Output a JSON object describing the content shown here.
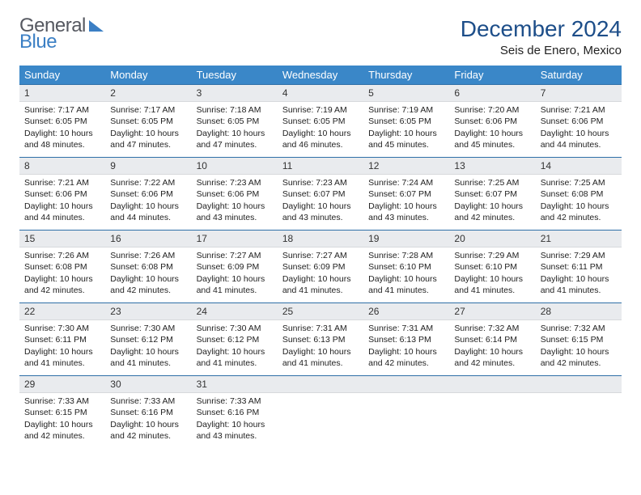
{
  "logo": {
    "text1": "General",
    "text2": "Blue"
  },
  "header": {
    "month_title": "December 2024",
    "location": "Seis de Enero, Mexico"
  },
  "colors": {
    "header_bar": "#3a87c8",
    "header_text": "#ffffff",
    "daynum_bg": "#e9ebee",
    "rule": "#2e6fa7",
    "title_color": "#1d4e89",
    "logo_blue": "#3b7fc4",
    "logo_gray": "#555860"
  },
  "weekdays": [
    "Sunday",
    "Monday",
    "Tuesday",
    "Wednesday",
    "Thursday",
    "Friday",
    "Saturday"
  ],
  "days": [
    {
      "n": "1",
      "sunrise": "7:17 AM",
      "sunset": "6:05 PM",
      "daylight": "10 hours and 48 minutes."
    },
    {
      "n": "2",
      "sunrise": "7:17 AM",
      "sunset": "6:05 PM",
      "daylight": "10 hours and 47 minutes."
    },
    {
      "n": "3",
      "sunrise": "7:18 AM",
      "sunset": "6:05 PM",
      "daylight": "10 hours and 47 minutes."
    },
    {
      "n": "4",
      "sunrise": "7:19 AM",
      "sunset": "6:05 PM",
      "daylight": "10 hours and 46 minutes."
    },
    {
      "n": "5",
      "sunrise": "7:19 AM",
      "sunset": "6:05 PM",
      "daylight": "10 hours and 45 minutes."
    },
    {
      "n": "6",
      "sunrise": "7:20 AM",
      "sunset": "6:06 PM",
      "daylight": "10 hours and 45 minutes."
    },
    {
      "n": "7",
      "sunrise": "7:21 AM",
      "sunset": "6:06 PM",
      "daylight": "10 hours and 44 minutes."
    },
    {
      "n": "8",
      "sunrise": "7:21 AM",
      "sunset": "6:06 PM",
      "daylight": "10 hours and 44 minutes."
    },
    {
      "n": "9",
      "sunrise": "7:22 AM",
      "sunset": "6:06 PM",
      "daylight": "10 hours and 44 minutes."
    },
    {
      "n": "10",
      "sunrise": "7:23 AM",
      "sunset": "6:06 PM",
      "daylight": "10 hours and 43 minutes."
    },
    {
      "n": "11",
      "sunrise": "7:23 AM",
      "sunset": "6:07 PM",
      "daylight": "10 hours and 43 minutes."
    },
    {
      "n": "12",
      "sunrise": "7:24 AM",
      "sunset": "6:07 PM",
      "daylight": "10 hours and 43 minutes."
    },
    {
      "n": "13",
      "sunrise": "7:25 AM",
      "sunset": "6:07 PM",
      "daylight": "10 hours and 42 minutes."
    },
    {
      "n": "14",
      "sunrise": "7:25 AM",
      "sunset": "6:08 PM",
      "daylight": "10 hours and 42 minutes."
    },
    {
      "n": "15",
      "sunrise": "7:26 AM",
      "sunset": "6:08 PM",
      "daylight": "10 hours and 42 minutes."
    },
    {
      "n": "16",
      "sunrise": "7:26 AM",
      "sunset": "6:08 PM",
      "daylight": "10 hours and 42 minutes."
    },
    {
      "n": "17",
      "sunrise": "7:27 AM",
      "sunset": "6:09 PM",
      "daylight": "10 hours and 41 minutes."
    },
    {
      "n": "18",
      "sunrise": "7:27 AM",
      "sunset": "6:09 PM",
      "daylight": "10 hours and 41 minutes."
    },
    {
      "n": "19",
      "sunrise": "7:28 AM",
      "sunset": "6:10 PM",
      "daylight": "10 hours and 41 minutes."
    },
    {
      "n": "20",
      "sunrise": "7:29 AM",
      "sunset": "6:10 PM",
      "daylight": "10 hours and 41 minutes."
    },
    {
      "n": "21",
      "sunrise": "7:29 AM",
      "sunset": "6:11 PM",
      "daylight": "10 hours and 41 minutes."
    },
    {
      "n": "22",
      "sunrise": "7:30 AM",
      "sunset": "6:11 PM",
      "daylight": "10 hours and 41 minutes."
    },
    {
      "n": "23",
      "sunrise": "7:30 AM",
      "sunset": "6:12 PM",
      "daylight": "10 hours and 41 minutes."
    },
    {
      "n": "24",
      "sunrise": "7:30 AM",
      "sunset": "6:12 PM",
      "daylight": "10 hours and 41 minutes."
    },
    {
      "n": "25",
      "sunrise": "7:31 AM",
      "sunset": "6:13 PM",
      "daylight": "10 hours and 41 minutes."
    },
    {
      "n": "26",
      "sunrise": "7:31 AM",
      "sunset": "6:13 PM",
      "daylight": "10 hours and 42 minutes."
    },
    {
      "n": "27",
      "sunrise": "7:32 AM",
      "sunset": "6:14 PM",
      "daylight": "10 hours and 42 minutes."
    },
    {
      "n": "28",
      "sunrise": "7:32 AM",
      "sunset": "6:15 PM",
      "daylight": "10 hours and 42 minutes."
    },
    {
      "n": "29",
      "sunrise": "7:33 AM",
      "sunset": "6:15 PM",
      "daylight": "10 hours and 42 minutes."
    },
    {
      "n": "30",
      "sunrise": "7:33 AM",
      "sunset": "6:16 PM",
      "daylight": "10 hours and 42 minutes."
    },
    {
      "n": "31",
      "sunrise": "7:33 AM",
      "sunset": "6:16 PM",
      "daylight": "10 hours and 43 minutes."
    }
  ],
  "labels": {
    "sunrise_prefix": "Sunrise: ",
    "sunset_prefix": "Sunset: ",
    "daylight_prefix": "Daylight: "
  },
  "layout": {
    "start_weekday_index": 0,
    "total_cells": 35
  }
}
